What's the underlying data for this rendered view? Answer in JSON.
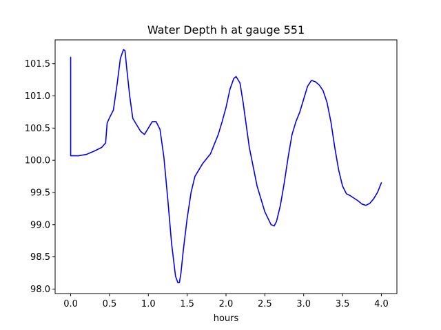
{
  "chart_data": {
    "type": "line",
    "title": "Water Depth h at gauge 551",
    "xlabel": "hours",
    "ylabel": "",
    "xlim": [
      -0.2,
      4.2
    ],
    "ylim": [
      97.93,
      101.87
    ],
    "xticks": [
      0.0,
      0.5,
      1.0,
      1.5,
      2.0,
      2.5,
      3.0,
      3.5,
      4.0
    ],
    "xtick_labels": [
      "0.0",
      "0.5",
      "1.0",
      "1.5",
      "2.0",
      "2.5",
      "3.0",
      "3.5",
      "4.0"
    ],
    "yticks": [
      98.0,
      98.5,
      99.0,
      99.5,
      100.0,
      100.5,
      101.0,
      101.5
    ],
    "ytick_labels": [
      "98.0",
      "98.5",
      "99.0",
      "99.5",
      "100.0",
      "100.5",
      "101.0",
      "101.5"
    ],
    "grid": false,
    "series": [
      {
        "color": "#0000ee",
        "x": [
          0.0,
          0.0,
          0.005,
          0.1,
          0.2,
          0.3,
          0.4,
          0.45,
          0.47,
          0.5,
          0.55,
          0.6,
          0.64,
          0.68,
          0.7,
          0.72,
          0.76,
          0.8,
          0.85,
          0.9,
          0.95,
          1.0,
          1.05,
          1.1,
          1.15,
          1.2,
          1.25,
          1.3,
          1.35,
          1.38,
          1.4,
          1.42,
          1.45,
          1.5,
          1.55,
          1.6,
          1.7,
          1.8,
          1.85,
          1.9,
          1.95,
          2.0,
          2.05,
          2.1,
          2.13,
          2.18,
          2.22,
          2.3,
          2.4,
          2.5,
          2.58,
          2.62,
          2.65,
          2.7,
          2.75,
          2.8,
          2.85,
          2.9,
          2.95,
          3.0,
          3.05,
          3.1,
          3.15,
          3.2,
          3.25,
          3.3,
          3.35,
          3.4,
          3.45,
          3.5,
          3.55,
          3.6,
          3.65,
          3.7,
          3.75,
          3.8,
          3.85,
          3.9,
          3.95,
          4.0
        ],
        "y": [
          101.6,
          100.07,
          100.07,
          100.07,
          100.09,
          100.14,
          100.2,
          100.27,
          100.58,
          100.66,
          100.78,
          101.2,
          101.58,
          101.72,
          101.7,
          101.45,
          101.0,
          100.65,
          100.55,
          100.45,
          100.4,
          100.5,
          100.6,
          100.6,
          100.48,
          100.05,
          99.4,
          98.7,
          98.2,
          98.1,
          98.1,
          98.25,
          98.6,
          99.1,
          99.5,
          99.75,
          99.95,
          100.1,
          100.25,
          100.4,
          100.6,
          100.82,
          101.1,
          101.27,
          101.3,
          101.2,
          100.9,
          100.2,
          99.6,
          99.2,
          99.0,
          98.98,
          99.05,
          99.3,
          99.65,
          100.05,
          100.4,
          100.6,
          100.75,
          100.95,
          101.15,
          101.24,
          101.22,
          101.17,
          101.08,
          100.9,
          100.6,
          100.2,
          99.85,
          99.6,
          99.48,
          99.45,
          99.41,
          99.37,
          99.32,
          99.3,
          99.33,
          99.4,
          99.5,
          99.65
        ]
      }
    ]
  }
}
